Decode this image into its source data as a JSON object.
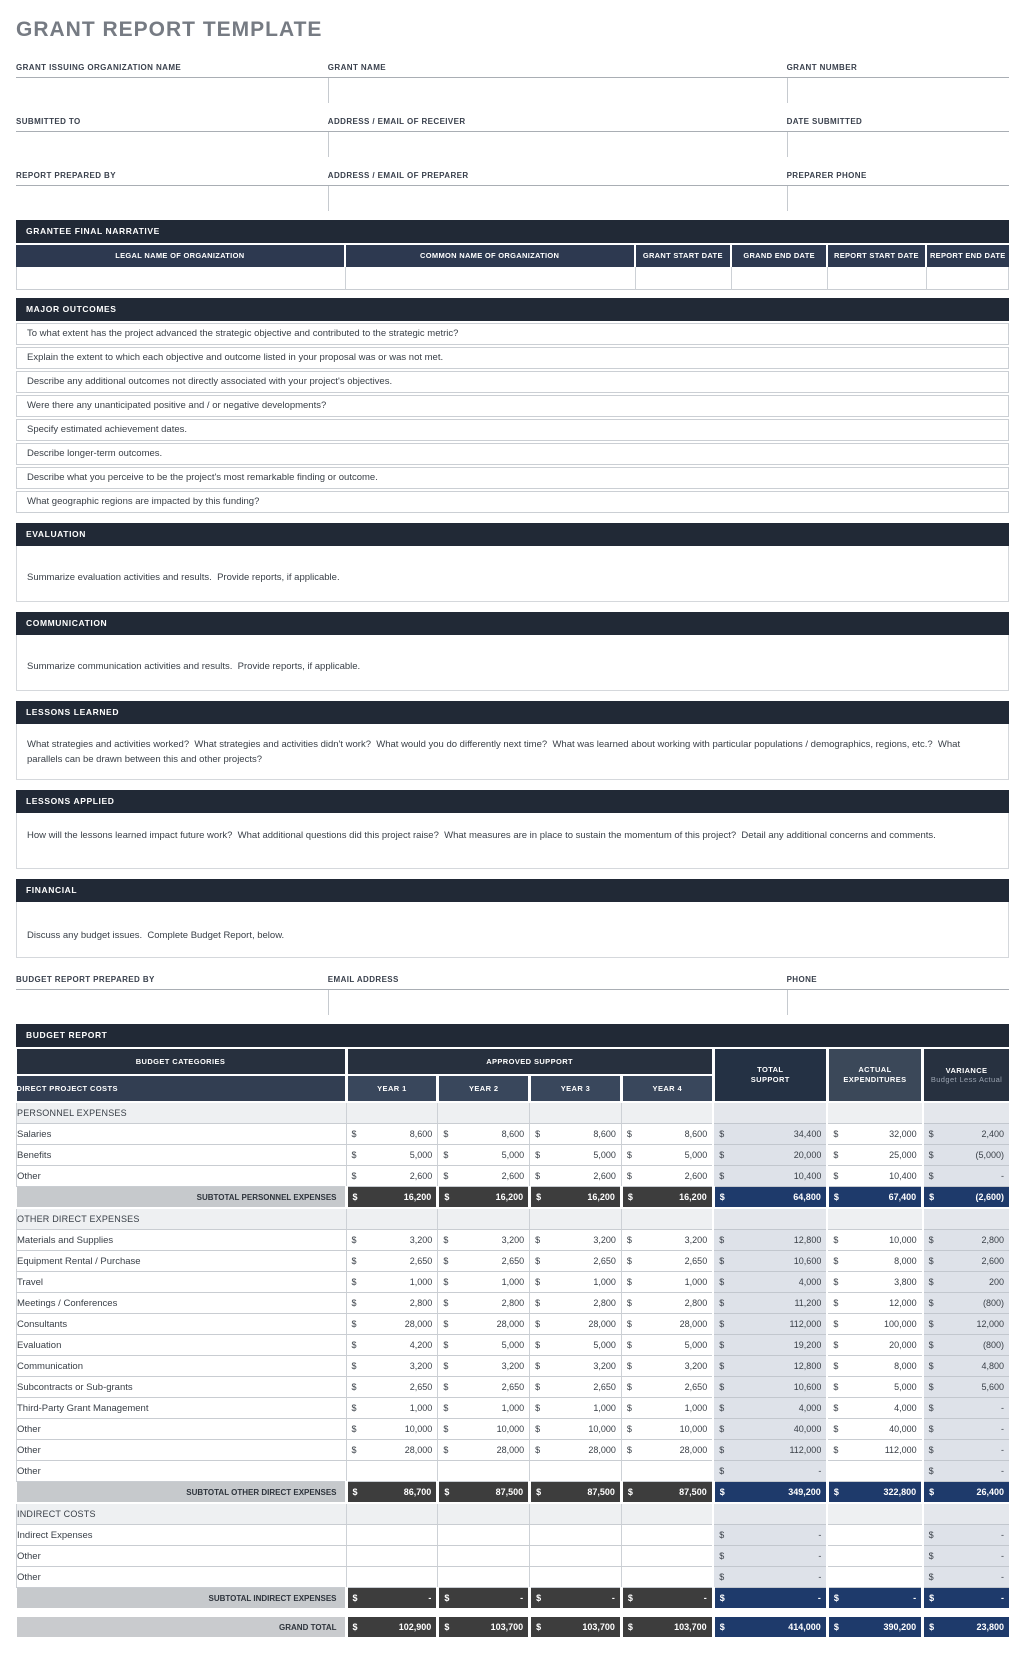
{
  "title": "GRANT REPORT TEMPLATE",
  "form": {
    "rows": [
      {
        "fields": [
          "GRANT ISSUING ORGANIZATION NAME",
          "GRANT NAME",
          "GRANT NUMBER"
        ]
      },
      {
        "fields": [
          "SUBMITTED TO",
          "ADDRESS / EMAIL OF RECEIVER",
          "DATE SUBMITTED"
        ]
      },
      {
        "fields": [
          "REPORT PREPARED BY",
          "ADDRESS / EMAIL OF PREPARER",
          "PREPARER PHONE"
        ]
      }
    ],
    "values": [
      "",
      "",
      "",
      "",
      "",
      "",
      "",
      "",
      ""
    ]
  },
  "narrative": {
    "title": "GRANTEE FINAL NARRATIVE",
    "columns": [
      "LEGAL NAME OF ORGANIZATION",
      "COMMON NAME OF ORGANIZATION",
      "GRANT START DATE",
      "GRAND END DATE",
      "REPORT START DATE",
      "REPORT END DATE"
    ],
    "row": [
      "",
      "",
      "",
      "",
      "",
      ""
    ]
  },
  "major_outcomes": {
    "title": "MAJOR OUTCOMES",
    "questions": [
      "To what extent has the project advanced the strategic objective and contributed to the strategic metric?",
      "Explain the extent to which each objective and outcome listed in your proposal was or was not met.",
      "Describe any additional outcomes not directly associated with your project's objectives.",
      "Were there any unanticipated positive and / or negative developments?",
      "Specify estimated achievement dates.",
      "Describe longer-term outcomes.",
      "Describe what you perceive to be the project's most remarkable finding or outcome.",
      "What geographic regions are impacted by this funding?"
    ]
  },
  "text_sections": [
    {
      "id": "evaluation",
      "title": "EVALUATION",
      "text": "Summarize evaluation activities and results.  Provide reports, if applicable."
    },
    {
      "id": "communication",
      "title": "COMMUNICATION",
      "text": "Summarize communication activities and results.  Provide reports, if applicable."
    },
    {
      "id": "lessons-learned",
      "title": "LESSONS LEARNED",
      "text": "What strategies and activities worked?  What strategies and activities didn't work?  What would you do differently next time?  What was learned about working with particular populations / demographics, regions, etc.?  What parallels can be drawn between this and other projects?"
    },
    {
      "id": "lessons-applied",
      "title": "LESSONS APPLIED",
      "text": "How will the lessons learned impact future work?  What additional questions did this project raise?  What measures are in place to sustain the momentum of this project?  Detail any additional concerns and comments."
    },
    {
      "id": "financial",
      "title": "FINANCIAL",
      "text": "Discuss any budget issues.  Complete Budget Report, below."
    }
  ],
  "budget_contact": {
    "rows": [
      {
        "fields": [
          "BUDGET REPORT PREPARED BY",
          "EMAIL ADDRESS",
          "PHONE"
        ]
      }
    ],
    "values": [
      "",
      "",
      ""
    ]
  },
  "budget": {
    "title": "BUDGET REPORT",
    "currency_symbol": "$",
    "header": {
      "categories": "BUDGET CATEGORIES",
      "approved_support": "APPROVED SUPPORT",
      "direct_costs": "DIRECT PROJECT COSTS",
      "years": [
        "YEAR 1",
        "YEAR 2",
        "YEAR 3",
        "YEAR 4"
      ],
      "total_support": "TOTAL SUPPORT",
      "actual_expenditures": "ACTUAL EXPENDITURES",
      "variance": "VARIANCE",
      "variance_sub": "Budget Less Actual"
    },
    "rows": [
      {
        "type": "section",
        "label": "PERSONNEL EXPENSES"
      },
      {
        "type": "item",
        "label": "Salaries",
        "years": [
          "8,600",
          "8,600",
          "8,600",
          "8,600"
        ],
        "total": "34,400",
        "actual": "32,000",
        "variance": "2,400"
      },
      {
        "type": "item",
        "label": "Benefits",
        "years": [
          "5,000",
          "5,000",
          "5,000",
          "5,000"
        ],
        "total": "20,000",
        "actual": "25,000",
        "variance": "(5,000)"
      },
      {
        "type": "item",
        "label": "Other",
        "years": [
          "2,600",
          "2,600",
          "2,600",
          "2,600"
        ],
        "total": "10,400",
        "actual": "10,400",
        "variance": "-"
      },
      {
        "type": "subtotal",
        "label": "SUBTOTAL PERSONNEL EXPENSES",
        "years": [
          "16,200",
          "16,200",
          "16,200",
          "16,200"
        ],
        "total": "64,800",
        "actual": "67,400",
        "variance": "(2,600)"
      },
      {
        "type": "section",
        "label": "OTHER DIRECT EXPENSES"
      },
      {
        "type": "item",
        "label": "Materials and Supplies",
        "years": [
          "3,200",
          "3,200",
          "3,200",
          "3,200"
        ],
        "total": "12,800",
        "actual": "10,000",
        "variance": "2,800"
      },
      {
        "type": "item",
        "label": "Equipment Rental / Purchase",
        "years": [
          "2,650",
          "2,650",
          "2,650",
          "2,650"
        ],
        "total": "10,600",
        "actual": "8,000",
        "variance": "2,600"
      },
      {
        "type": "item",
        "label": "Travel",
        "years": [
          "1,000",
          "1,000",
          "1,000",
          "1,000"
        ],
        "total": "4,000",
        "actual": "3,800",
        "variance": "200"
      },
      {
        "type": "item",
        "label": "Meetings / Conferences",
        "years": [
          "2,800",
          "2,800",
          "2,800",
          "2,800"
        ],
        "total": "11,200",
        "actual": "12,000",
        "variance": "(800)"
      },
      {
        "type": "item",
        "label": "Consultants",
        "years": [
          "28,000",
          "28,000",
          "28,000",
          "28,000"
        ],
        "total": "112,000",
        "actual": "100,000",
        "variance": "12,000"
      },
      {
        "type": "item",
        "label": "Evaluation",
        "years": [
          "4,200",
          "5,000",
          "5,000",
          "5,000"
        ],
        "total": "19,200",
        "actual": "20,000",
        "variance": "(800)"
      },
      {
        "type": "item",
        "label": "Communication",
        "years": [
          "3,200",
          "3,200",
          "3,200",
          "3,200"
        ],
        "total": "12,800",
        "actual": "8,000",
        "variance": "4,800"
      },
      {
        "type": "item",
        "label": "Subcontracts or Sub-grants",
        "years": [
          "2,650",
          "2,650",
          "2,650",
          "2,650"
        ],
        "total": "10,600",
        "actual": "5,000",
        "variance": "5,600"
      },
      {
        "type": "item",
        "label": "Third-Party Grant Management",
        "years": [
          "1,000",
          "1,000",
          "1,000",
          "1,000"
        ],
        "total": "4,000",
        "actual": "4,000",
        "variance": "-"
      },
      {
        "type": "item",
        "label": "Other",
        "years": [
          "10,000",
          "10,000",
          "10,000",
          "10,000"
        ],
        "total": "40,000",
        "actual": "40,000",
        "variance": "-"
      },
      {
        "type": "item",
        "label": "Other",
        "years": [
          "28,000",
          "28,000",
          "28,000",
          "28,000"
        ],
        "total": "112,000",
        "actual": "112,000",
        "variance": "-"
      },
      {
        "type": "item",
        "label": "Other",
        "years": [
          "",
          "",
          "",
          ""
        ],
        "total": "-",
        "actual": "",
        "variance": "-"
      },
      {
        "type": "subtotal",
        "label": "SUBTOTAL OTHER DIRECT EXPENSES",
        "years": [
          "86,700",
          "87,500",
          "87,500",
          "87,500"
        ],
        "total": "349,200",
        "actual": "322,800",
        "variance": "26,400"
      },
      {
        "type": "section",
        "label": "INDIRECT COSTS"
      },
      {
        "type": "item",
        "label": "Indirect Expenses",
        "years": [
          "",
          "",
          "",
          ""
        ],
        "total": "-",
        "actual": "",
        "variance": "-"
      },
      {
        "type": "item",
        "label": "Other",
        "years": [
          "",
          "",
          "",
          ""
        ],
        "total": "-",
        "actual": "",
        "variance": "-"
      },
      {
        "type": "item",
        "label": "Other",
        "years": [
          "",
          "",
          "",
          ""
        ],
        "total": "-",
        "actual": "",
        "variance": "-"
      },
      {
        "type": "subtotal",
        "label": "SUBTOTAL INDIRECT EXPENSES",
        "years": [
          "-",
          "-",
          "-",
          "-"
        ],
        "total": "-",
        "actual": "-",
        "variance": "-"
      },
      {
        "type": "spacer"
      },
      {
        "type": "grand",
        "label": "GRAND TOTAL",
        "years": [
          "102,900",
          "103,700",
          "103,700",
          "103,700"
        ],
        "total": "414,000",
        "actual": "390,200",
        "variance": "23,800"
      }
    ]
  },
  "colors": {
    "bar_dark": "#212936",
    "subheader_slate": "#2D3950",
    "header_navy": "#27303E",
    "header_year_slate": "#39475C",
    "total_support_header": "#243144",
    "actual_header": "#3B4859",
    "subtotal_navy": "#1E3A6B",
    "subtotal_charcoal": "#3D3D3D",
    "tinted_column": "#DEE2E9",
    "section_row": "#EEF0F2",
    "subtotal_label_gray": "#C6C9CC"
  }
}
